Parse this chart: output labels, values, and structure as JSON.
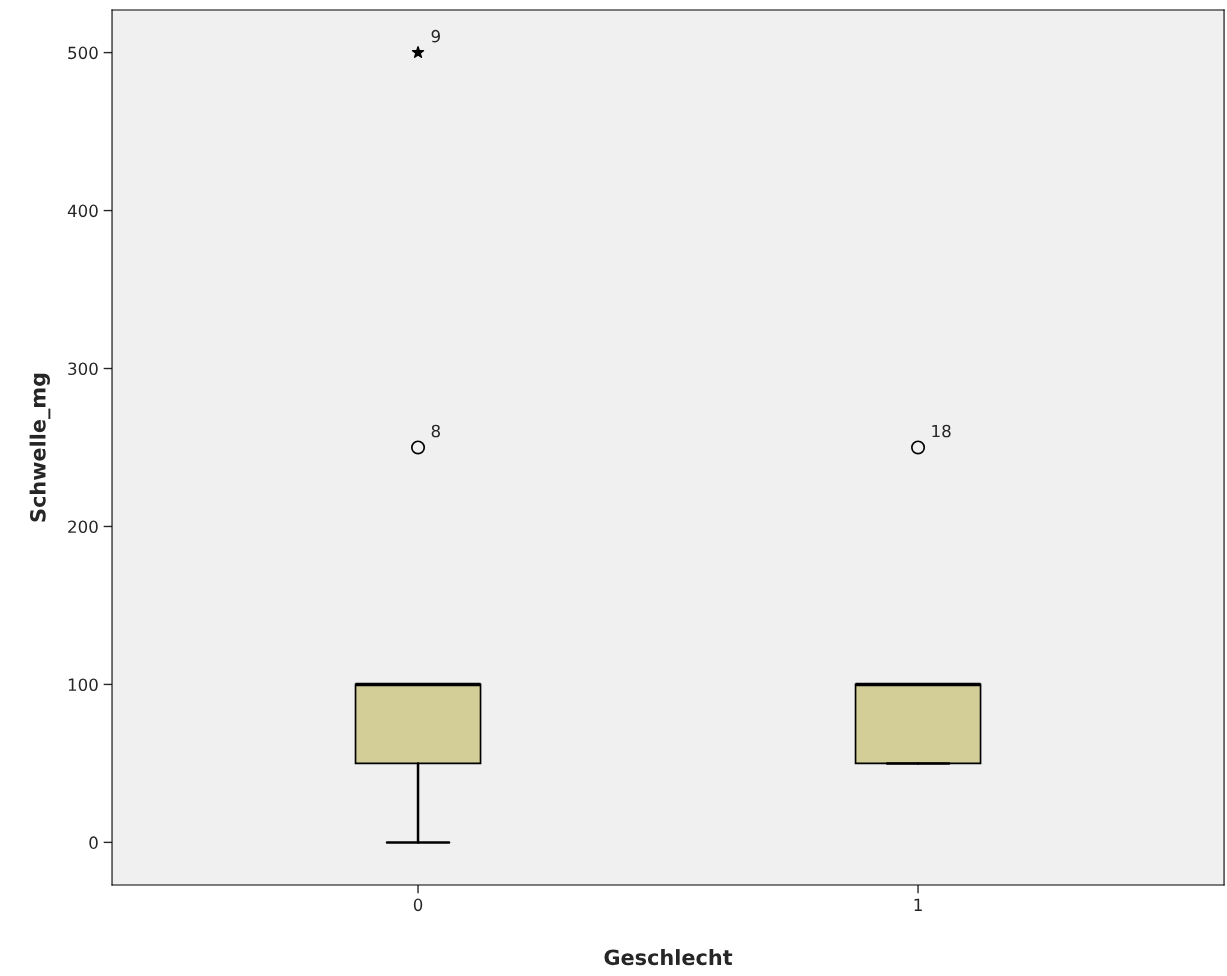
{
  "chart_data": {
    "type": "box",
    "xlabel": "Geschlecht",
    "ylabel": "Schwelle_mg",
    "categories": [
      "0",
      "1"
    ],
    "boxes": [
      {
        "low": 0,
        "q1": 50,
        "median": 100,
        "q3": 100,
        "high": 100
      },
      {
        "low": 50,
        "q1": 50,
        "median": 100,
        "q3": 100,
        "high": 100
      }
    ],
    "color": "#d3ce97",
    "series": [
      {
        "type": "scatter",
        "x": [
          "0"
        ],
        "values": [
          500
        ],
        "marker": "star",
        "color": "#000000"
      },
      {
        "type": "scatter",
        "x": [
          "0",
          "1"
        ],
        "values": [
          250,
          250
        ],
        "marker": "circle",
        "color": "#000000"
      }
    ],
    "annotations": [
      {
        "text": "9",
        "x": "0",
        "y": 500
      },
      {
        "text": "8",
        "x": "0",
        "y": 250
      },
      {
        "text": "18",
        "x": "1",
        "y": 250
      }
    ],
    "ylim": [
      -27,
      527
    ],
    "yticks": [
      0,
      100,
      200,
      300,
      400,
      500
    ],
    "grid": false
  }
}
